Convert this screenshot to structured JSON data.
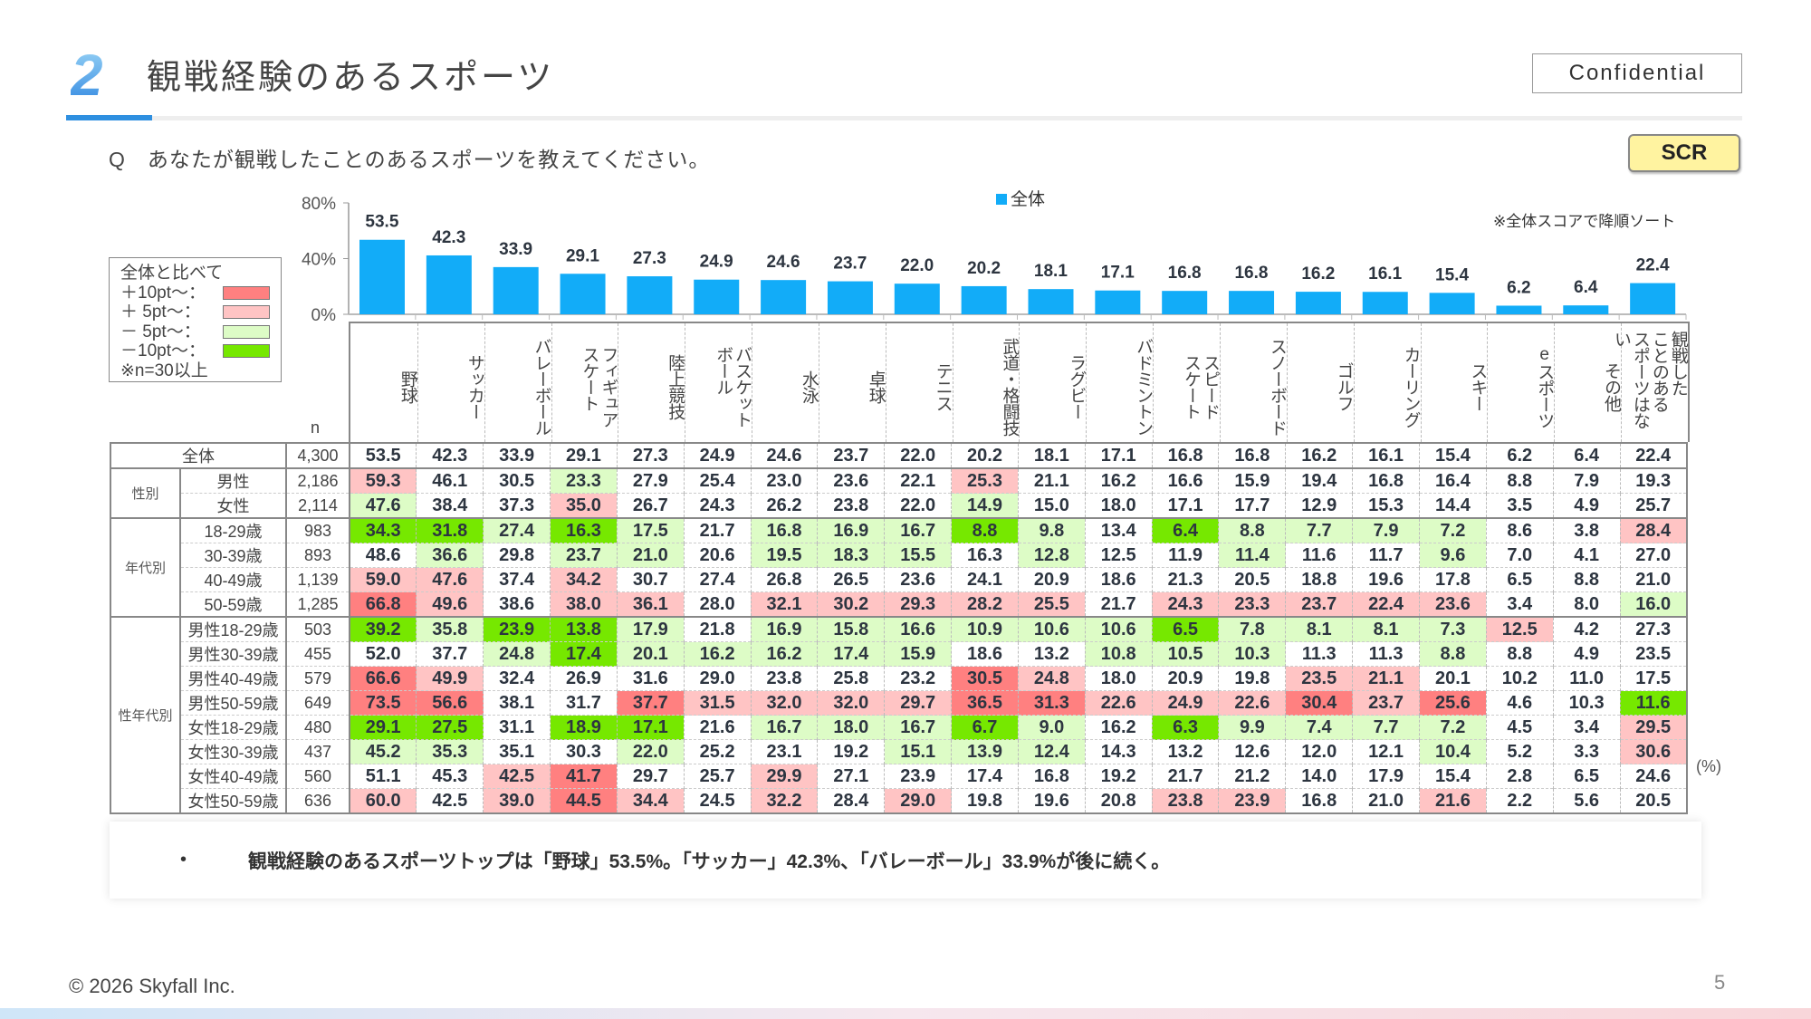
{
  "header": {
    "section_number": "2",
    "title": "観戦経験のあるスポーツ",
    "confidential": "Confidential"
  },
  "question": {
    "text": "Q　あなたが観戦したことのあるスポーツを教えてください。",
    "badge": "SCR"
  },
  "legend_series": "全体",
  "sort_note": "※全体スコアで降順ソート",
  "compare_legend": {
    "title": "全体と比べて",
    "items": [
      {
        "label": "＋10pt～：",
        "color": "#ff8080"
      },
      {
        "label": "＋  5pt～：",
        "color": "#ffc4c4"
      },
      {
        "label": "－  5pt～：",
        "color": "#ddfcc6"
      },
      {
        "label": "－10pt～：",
        "color": "#76e800"
      }
    ],
    "note": "※n=30以上"
  },
  "n_label": "n",
  "unit_label": "(%)",
  "chart_data": {
    "type": "bar",
    "series": [
      {
        "name": "全体",
        "values": [
          53.5,
          42.3,
          33.9,
          29.1,
          27.3,
          24.9,
          24.6,
          23.7,
          22.0,
          20.2,
          18.1,
          17.1,
          16.8,
          16.8,
          16.2,
          16.1,
          15.4,
          6.2,
          6.4,
          22.4
        ]
      }
    ],
    "categories": [
      "野球",
      "サッカー",
      "バレーボール",
      "フィギュア\nスケート",
      "陸上競技",
      "バスケット\nボール",
      "水泳",
      "卓球",
      "テニス",
      "武道・格闘技",
      "ラグビー",
      "バドミントン",
      "スピード\nスケート",
      "スノーボード",
      "ゴルフ",
      "カーリング",
      "スキー",
      "eスポーツ",
      "その他",
      "観戦した\nことのある\nスポーツはない"
    ],
    "value_labels": [
      "53.5",
      "42.3",
      "33.9",
      "29.1",
      "27.3",
      "24.9",
      "24.6",
      "23.7",
      "22.0",
      "20.2",
      "18.1",
      "17.1",
      "16.8",
      "16.8",
      "16.2",
      "16.1",
      "15.4",
      "6.2",
      "6.4",
      "22.4"
    ],
    "ylim": [
      0,
      80
    ],
    "yticks": [
      "0%",
      "40%",
      "80%"
    ],
    "bar_color": "#12acf8",
    "legend": "top-center"
  },
  "table": {
    "groups": [
      {
        "label": "性別",
        "rows": [
          1,
          2
        ]
      },
      {
        "label": "年代別",
        "rows": [
          3,
          4,
          5,
          6
        ]
      },
      {
        "label": "性年代別",
        "rows": [
          7,
          8,
          9,
          10,
          11,
          12,
          13,
          14
        ]
      }
    ],
    "rows": [
      {
        "label": "全体",
        "n": "4,300",
        "values": [
          "53.5",
          "42.3",
          "33.9",
          "29.1",
          "27.3",
          "24.9",
          "24.6",
          "23.7",
          "22.0",
          "20.2",
          "18.1",
          "17.1",
          "16.8",
          "16.8",
          "16.2",
          "16.1",
          "15.4",
          "6.2",
          "6.4",
          "22.4"
        ]
      },
      {
        "label": "男性",
        "n": "2,186",
        "values": [
          "59.3",
          "46.1",
          "30.5",
          "23.3",
          "27.9",
          "25.4",
          "23.0",
          "23.6",
          "22.1",
          "25.3",
          "21.1",
          "16.2",
          "16.6",
          "15.9",
          "19.4",
          "16.8",
          "16.4",
          "8.8",
          "7.9",
          "19.3"
        ]
      },
      {
        "label": "女性",
        "n": "2,114",
        "values": [
          "47.6",
          "38.4",
          "37.3",
          "35.0",
          "26.7",
          "24.3",
          "26.2",
          "23.8",
          "22.0",
          "14.9",
          "15.0",
          "18.0",
          "17.1",
          "17.7",
          "12.9",
          "15.3",
          "14.4",
          "3.5",
          "4.9",
          "25.7"
        ]
      },
      {
        "label": "18-29歳",
        "n": "983",
        "values": [
          "34.3",
          "31.8",
          "27.4",
          "16.3",
          "17.5",
          "21.7",
          "16.8",
          "16.9",
          "16.7",
          "8.8",
          "9.8",
          "13.4",
          "6.4",
          "8.8",
          "7.7",
          "7.9",
          "7.2",
          "8.6",
          "3.8",
          "28.4"
        ]
      },
      {
        "label": "30-39歳",
        "n": "893",
        "values": [
          "48.6",
          "36.6",
          "29.8",
          "23.7",
          "21.0",
          "20.6",
          "19.5",
          "18.3",
          "15.5",
          "16.3",
          "12.8",
          "12.5",
          "11.9",
          "11.4",
          "11.6",
          "11.7",
          "9.6",
          "7.0",
          "4.1",
          "27.0"
        ]
      },
      {
        "label": "40-49歳",
        "n": "1,139",
        "values": [
          "59.0",
          "47.6",
          "37.4",
          "34.2",
          "30.7",
          "27.4",
          "26.8",
          "26.5",
          "23.6",
          "24.1",
          "20.9",
          "18.6",
          "21.3",
          "20.5",
          "18.8",
          "19.6",
          "17.8",
          "6.5",
          "8.8",
          "21.0"
        ]
      },
      {
        "label": "50-59歳",
        "n": "1,285",
        "values": [
          "66.8",
          "49.6",
          "38.6",
          "38.0",
          "36.1",
          "28.0",
          "32.1",
          "30.2",
          "29.3",
          "28.2",
          "25.5",
          "21.7",
          "24.3",
          "23.3",
          "23.7",
          "22.4",
          "23.6",
          "3.4",
          "8.0",
          "16.0"
        ]
      },
      {
        "label": "男性18-29歳",
        "n": "503",
        "values": [
          "39.2",
          "35.8",
          "23.9",
          "13.8",
          "17.9",
          "21.8",
          "16.9",
          "15.8",
          "16.6",
          "10.9",
          "10.6",
          "10.6",
          "6.5",
          "7.8",
          "8.1",
          "8.1",
          "7.3",
          "12.5",
          "4.2",
          "27.3"
        ]
      },
      {
        "label": "男性30-39歳",
        "n": "455",
        "values": [
          "52.0",
          "37.7",
          "24.8",
          "17.4",
          "20.1",
          "16.2",
          "16.2",
          "17.4",
          "15.9",
          "18.6",
          "13.2",
          "10.8",
          "10.5",
          "10.3",
          "11.3",
          "11.3",
          "8.8",
          "8.8",
          "4.9",
          "23.5"
        ]
      },
      {
        "label": "男性40-49歳",
        "n": "579",
        "values": [
          "66.6",
          "49.9",
          "32.4",
          "26.9",
          "31.6",
          "29.0",
          "23.8",
          "25.8",
          "23.2",
          "30.5",
          "24.8",
          "18.0",
          "20.9",
          "19.8",
          "23.5",
          "21.1",
          "20.1",
          "10.2",
          "11.0",
          "17.5"
        ]
      },
      {
        "label": "男性50-59歳",
        "n": "649",
        "values": [
          "73.5",
          "56.6",
          "38.1",
          "31.7",
          "37.7",
          "31.5",
          "32.0",
          "32.0",
          "29.7",
          "36.5",
          "31.3",
          "22.6",
          "24.9",
          "22.6",
          "30.4",
          "23.7",
          "25.6",
          "4.6",
          "10.3",
          "11.6"
        ]
      },
      {
        "label": "女性18-29歳",
        "n": "480",
        "values": [
          "29.1",
          "27.5",
          "31.1",
          "18.9",
          "17.1",
          "21.6",
          "16.7",
          "18.0",
          "16.7",
          "6.7",
          "9.0",
          "16.2",
          "6.3",
          "9.9",
          "7.4",
          "7.7",
          "7.2",
          "4.5",
          "3.4",
          "29.5"
        ]
      },
      {
        "label": "女性30-39歳",
        "n": "437",
        "values": [
          "45.2",
          "35.3",
          "35.1",
          "30.3",
          "22.0",
          "25.2",
          "23.1",
          "19.2",
          "15.1",
          "13.9",
          "12.4",
          "14.3",
          "13.2",
          "12.6",
          "12.0",
          "12.1",
          "10.4",
          "5.2",
          "3.3",
          "30.6"
        ]
      },
      {
        "label": "女性40-49歳",
        "n": "560",
        "values": [
          "51.1",
          "45.3",
          "42.5",
          "41.7",
          "29.7",
          "25.7",
          "29.9",
          "27.1",
          "23.9",
          "17.4",
          "16.8",
          "19.2",
          "21.7",
          "21.2",
          "14.0",
          "17.9",
          "15.4",
          "2.8",
          "6.5",
          "24.6"
        ]
      },
      {
        "label": "女性50-59歳",
        "n": "636",
        "values": [
          "60.0",
          "42.5",
          "39.0",
          "44.5",
          "34.4",
          "24.5",
          "32.2",
          "28.4",
          "29.0",
          "19.8",
          "19.6",
          "20.8",
          "23.8",
          "23.9",
          "16.8",
          "21.0",
          "21.6",
          "2.2",
          "5.6",
          "20.5"
        ]
      }
    ]
  },
  "summary": {
    "bullet": "•",
    "text": "観戦経験のあるスポーツトップは「野球」53.5%。「サッカー」42.3%、「バレーボール」33.9%が後に続く。"
  },
  "footer": {
    "copyright": "© 2026 Skyfall Inc.",
    "page": "5"
  }
}
